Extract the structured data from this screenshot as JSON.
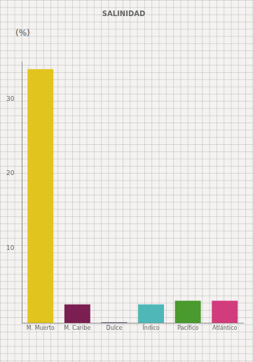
{
  "chart_data": {
    "type": "bar",
    "title": "SALINIDAD",
    "ylabel": "(%)",
    "categories": [
      "M. Muerto",
      "M. Caribe",
      "Dulce",
      "Índico",
      "Pacífico",
      "Atlántico"
    ],
    "values": [
      34,
      2.5,
      0.1,
      2.5,
      3,
      3
    ],
    "colors": [
      "#e2c41e",
      "#7b1f52",
      "#55556a",
      "#4fb7b8",
      "#4b9a2f",
      "#d23c7c"
    ],
    "ylim": [
      0,
      35
    ],
    "yticks": [
      10,
      20,
      30
    ],
    "grid": false
  }
}
